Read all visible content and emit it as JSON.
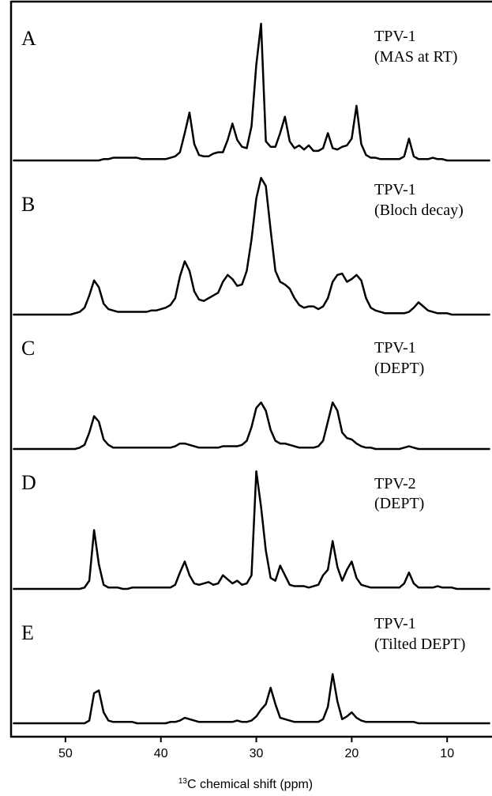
{
  "chart_data": {
    "type": "line",
    "x_label_sup": "13",
    "x_label": "C chemical shift (ppm)",
    "xlim": [
      55.7,
      5.3
    ],
    "xticks": [
      50,
      40,
      30,
      20,
      10
    ],
    "color": "#000000",
    "x": [
      55.5,
      55,
      54.5,
      54,
      53.5,
      53,
      52.5,
      52,
      51.5,
      51,
      50.5,
      50,
      49.5,
      49,
      48.5,
      48,
      47.5,
      47,
      46.5,
      46,
      45.5,
      45,
      44.5,
      44,
      43.5,
      43,
      42.5,
      42,
      41.5,
      41,
      40.5,
      40,
      39.5,
      39,
      38.5,
      38,
      37.5,
      37,
      36.5,
      36,
      35.5,
      35,
      34.5,
      34,
      33.5,
      33,
      32.5,
      32,
      31.5,
      31,
      30.5,
      30,
      29.5,
      29,
      28.5,
      28,
      27.5,
      27,
      26.5,
      26,
      25.5,
      25,
      24.5,
      24,
      23.5,
      23,
      22.5,
      22,
      21.5,
      21,
      20.5,
      20,
      19.5,
      19,
      18.5,
      18,
      17.5,
      17,
      16.5,
      16,
      15.5,
      15,
      14.5,
      14,
      13.5,
      13,
      12.5,
      12,
      11.5,
      11,
      10.5,
      10,
      9.5,
      9,
      8.5,
      8,
      7.5,
      7,
      6.5,
      6,
      5.5
    ],
    "series": [
      {
        "name": "A",
        "label": [
          "TPV-1",
          "(MAS at RT)"
        ],
        "color": "#000000",
        "values": [
          0,
          0,
          0,
          0,
          0,
          0,
          0,
          0,
          0,
          0,
          0,
          0,
          0,
          0,
          0,
          0,
          0,
          0,
          0,
          1,
          1,
          2,
          2,
          2,
          2,
          2,
          2,
          1,
          1,
          1,
          1,
          1,
          1,
          2,
          3,
          6,
          20,
          35,
          12,
          4,
          3,
          3,
          5,
          6,
          6,
          15,
          27,
          15,
          10,
          9,
          25,
          70,
          100,
          14,
          10,
          10,
          20,
          32,
          14,
          9,
          11,
          8,
          11,
          7,
          7,
          9,
          20,
          9,
          8,
          10,
          11,
          16,
          40,
          12,
          4,
          2,
          2,
          1,
          1,
          1,
          1,
          1,
          3,
          16,
          3,
          1,
          1,
          1,
          2,
          1,
          1,
          0,
          0,
          0,
          0,
          0,
          0,
          0,
          0,
          0,
          0
        ]
      },
      {
        "name": "B",
        "label": [
          "TPV-1",
          "(Bloch decay)"
        ],
        "color": "#000000",
        "values": [
          0,
          0,
          0,
          0,
          0,
          0,
          0,
          0,
          0,
          0,
          0,
          0,
          0,
          1,
          2,
          5,
          14,
          25,
          20,
          8,
          4,
          3,
          2,
          2,
          2,
          2,
          2,
          2,
          2,
          3,
          3,
          4,
          5,
          7,
          12,
          28,
          39,
          32,
          17,
          11,
          10,
          12,
          14,
          16,
          24,
          29,
          26,
          21,
          22,
          32,
          55,
          85,
          100,
          94,
          62,
          32,
          24,
          22,
          19,
          12,
          7,
          5,
          6,
          6,
          4,
          6,
          12,
          24,
          29,
          30,
          24,
          26,
          29,
          25,
          12,
          5,
          3,
          2,
          1,
          1,
          1,
          1,
          1,
          2,
          5,
          9,
          6,
          3,
          2,
          1,
          1,
          1,
          0,
          0,
          0,
          0,
          0,
          0,
          0,
          0,
          0
        ]
      },
      {
        "name": "C",
        "label": [
          "TPV-1",
          "(DEPT)"
        ],
        "color": "#000000",
        "values": [
          0,
          0,
          0,
          0,
          0,
          0,
          0,
          0,
          0,
          0,
          0,
          0,
          0,
          0,
          1,
          3,
          12,
          24,
          20,
          7,
          3,
          1,
          1,
          1,
          1,
          1,
          1,
          1,
          1,
          1,
          1,
          1,
          1,
          1,
          2,
          4,
          4,
          3,
          2,
          1,
          1,
          1,
          1,
          1,
          2,
          2,
          2,
          2,
          3,
          6,
          16,
          30,
          34,
          28,
          14,
          6,
          4,
          4,
          3,
          2,
          1,
          1,
          1,
          1,
          2,
          6,
          20,
          34,
          28,
          12,
          8,
          7,
          4,
          2,
          1,
          1,
          0,
          0,
          0,
          0,
          0,
          0,
          1,
          2,
          1,
          0,
          0,
          0,
          0,
          0,
          0,
          0,
          0,
          0,
          0,
          0,
          0,
          0,
          0,
          0,
          0
        ]
      },
      {
        "name": "D",
        "label": [
          "TPV-2",
          "(DEPT)"
        ],
        "color": "#000000",
        "values": [
          0,
          0,
          0,
          0,
          0,
          0,
          0,
          0,
          0,
          0,
          0,
          0,
          0,
          0,
          0,
          1,
          6,
          43,
          18,
          3,
          1,
          1,
          1,
          0,
          0,
          1,
          1,
          1,
          1,
          1,
          1,
          1,
          1,
          1,
          3,
          12,
          20,
          10,
          4,
          3,
          4,
          5,
          3,
          4,
          10,
          7,
          4,
          6,
          3,
          4,
          10,
          86,
          60,
          28,
          8,
          6,
          17,
          10,
          3,
          2,
          2,
          2,
          1,
          2,
          3,
          10,
          14,
          35,
          16,
          6,
          14,
          20,
          8,
          3,
          2,
          1,
          1,
          1,
          1,
          1,
          1,
          1,
          4,
          12,
          4,
          1,
          1,
          1,
          1,
          2,
          1,
          1,
          1,
          0,
          0,
          0,
          0,
          0,
          0,
          0,
          0
        ]
      },
      {
        "name": "E",
        "label": [
          "TPV-1",
          "(Tilted DEPT)"
        ],
        "color": "#000000",
        "values": [
          0,
          0,
          0,
          0,
          0,
          0,
          0,
          0,
          0,
          0,
          0,
          0,
          0,
          0,
          0,
          0,
          2,
          22,
          24,
          8,
          2,
          1,
          1,
          1,
          1,
          1,
          0,
          0,
          0,
          0,
          0,
          0,
          0,
          1,
          1,
          2,
          4,
          3,
          2,
          1,
          1,
          1,
          1,
          1,
          1,
          1,
          1,
          2,
          1,
          1,
          2,
          5,
          10,
          14,
          26,
          14,
          4,
          3,
          2,
          1,
          1,
          1,
          1,
          1,
          1,
          3,
          12,
          36,
          16,
          3,
          5,
          8,
          4,
          2,
          1,
          1,
          1,
          1,
          1,
          1,
          1,
          1,
          1,
          1,
          1,
          0,
          0,
          0,
          0,
          0,
          0,
          0,
          0,
          0,
          0,
          0,
          0,
          0,
          0,
          0,
          0
        ]
      }
    ]
  }
}
